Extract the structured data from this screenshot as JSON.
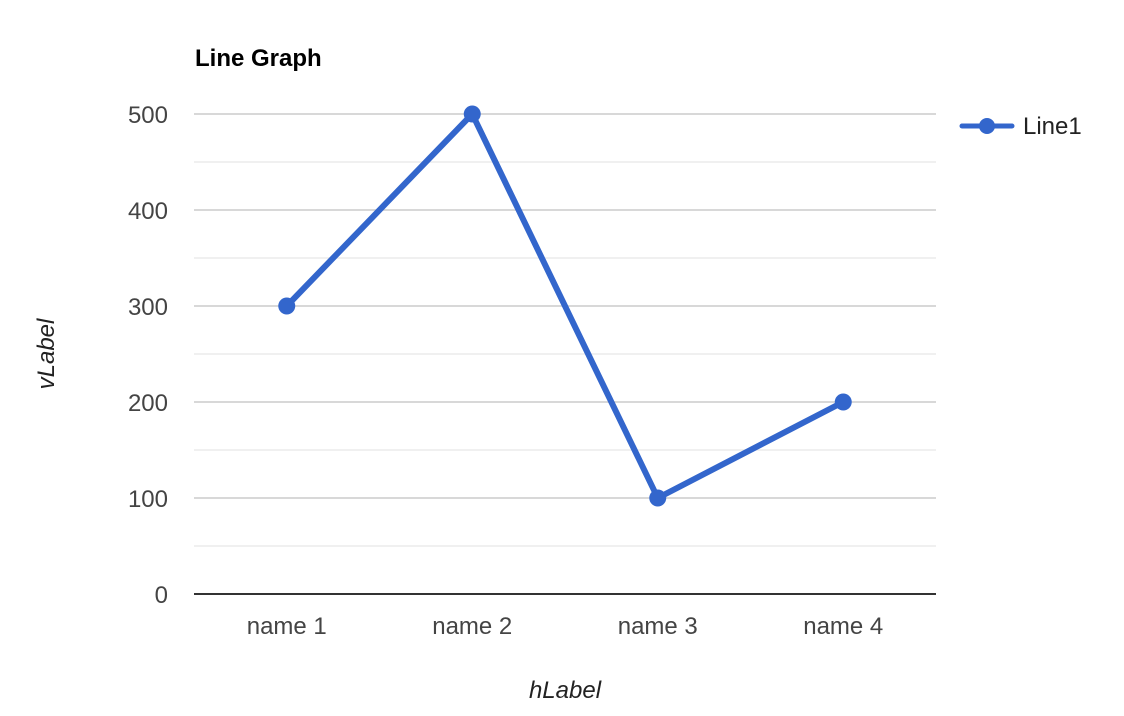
{
  "chart_data": {
    "type": "line",
    "title": "Line Graph",
    "xlabel": "hLabel",
    "ylabel": "vLabel",
    "categories": [
      "name 1",
      "name 2",
      "name 3",
      "name 4"
    ],
    "series": [
      {
        "name": "Line1",
        "values": [
          300,
          500,
          100,
          200
        ],
        "color": "#3366cc"
      }
    ],
    "ylim": [
      0,
      500
    ],
    "yticks": [
      0,
      100,
      200,
      300,
      400,
      500
    ],
    "ytick_labels": [
      "0",
      "100",
      "200",
      "300",
      "400",
      "500"
    ],
    "grid": true,
    "legend_position": "right"
  }
}
